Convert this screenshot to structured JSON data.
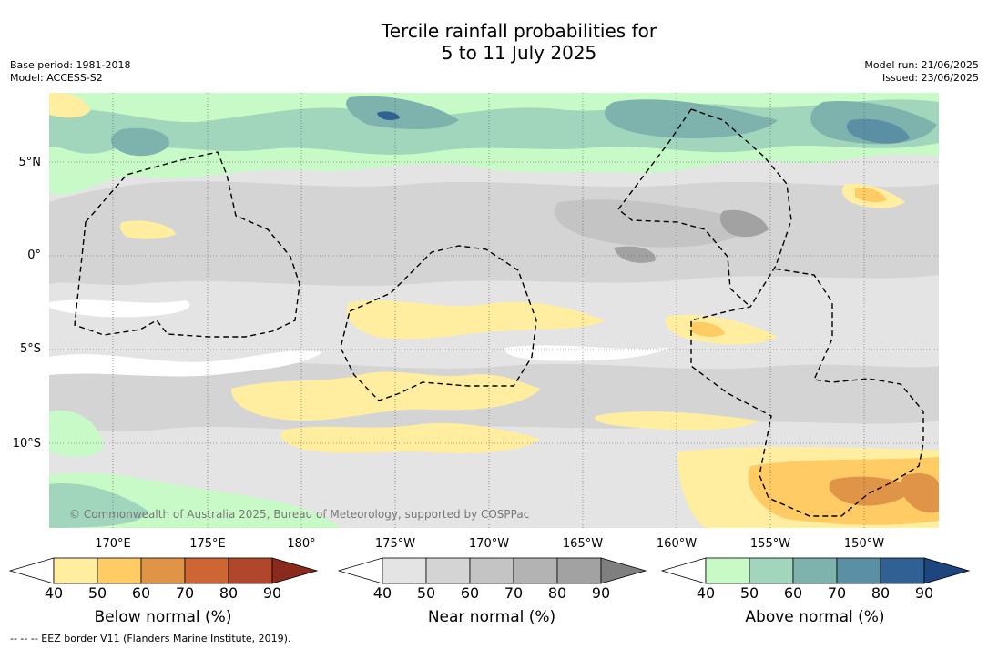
{
  "title_line1": "Tercile rainfall probabilities for",
  "title_line2": "5 to 11 July 2025",
  "base_period": "Base period: 1981-2018",
  "model": "Model: ACCESS-S2",
  "model_run": "Model run: 21/06/2025",
  "issued": "Issued: 23/06/2025",
  "credit": "© Commonwealth of Australia 2025, Bureau of Meteorology, supported by COSPPac",
  "footnote": "--  --  -- EEZ border V11 (Flanders Marine Institute, 2019).",
  "lat_labels": [
    "5°N",
    "0°",
    "5°S",
    "10°S"
  ],
  "lon_labels": [
    "170°E",
    "175°E",
    "180°",
    "175°W",
    "170°W",
    "165°W",
    "160°W",
    "155°W",
    "150°W"
  ],
  "colorbars": [
    {
      "title": "Below normal (%)",
      "ticks": [
        "40",
        "50",
        "60",
        "70",
        "80",
        "90"
      ],
      "colors": [
        "#ffffff",
        "#ffeda0",
        "#fecb65",
        "#e09447",
        "#cd6535",
        "#b0462a",
        "#8a2a1c"
      ]
    },
    {
      "title": "Near normal (%)",
      "ticks": [
        "40",
        "50",
        "60",
        "70",
        "80",
        "90"
      ],
      "colors": [
        "#ffffff",
        "#e4e4e4",
        "#d4d4d4",
        "#c4c4c4",
        "#b3b3b3",
        "#a2a2a2",
        "#7f7f7f"
      ]
    },
    {
      "title": "Above normal (%)",
      "ticks": [
        "40",
        "50",
        "60",
        "70",
        "80",
        "90"
      ],
      "colors": [
        "#ffffff",
        "#c8fac8",
        "#a1d6bd",
        "#7db2ad",
        "#5b8fa3",
        "#316194",
        "#1d4680"
      ]
    }
  ]
}
